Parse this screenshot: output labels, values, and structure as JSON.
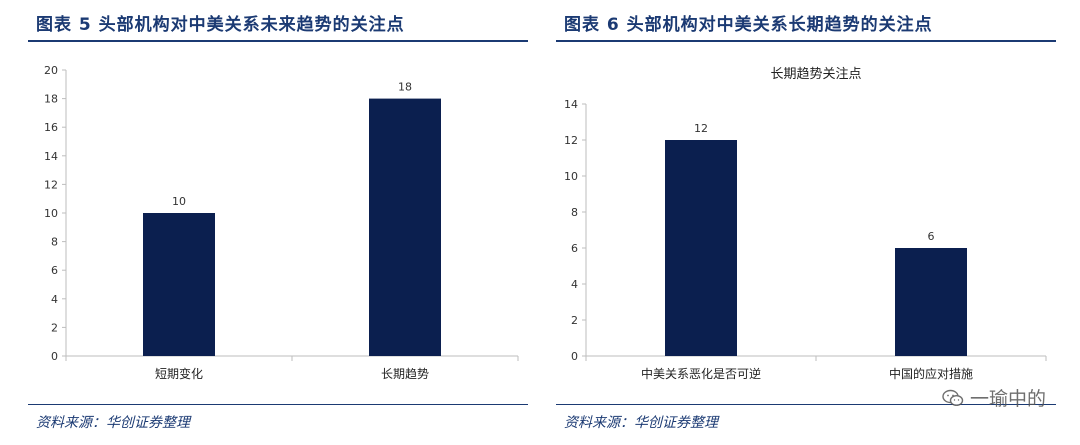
{
  "figures": [
    {
      "title": "图表 5   头部机构对中美关系未来趋势的关注点",
      "source": "资料来源：华创证券整理"
    },
    {
      "title": "图表 6   头部机构对中美关系长期趋势的关注点",
      "source": "资料来源：华创证券整理"
    }
  ],
  "watermark": {
    "text": "一瑜中的",
    "icon": "wechat-icon"
  },
  "colors": {
    "bar": "#0b1f4f",
    "title": "#1b3a73",
    "axis": "#bdbdbd"
  },
  "chart_data": [
    {
      "type": "bar",
      "title": "",
      "categories": [
        "短期变化",
        "长期趋势"
      ],
      "values": [
        10,
        18
      ],
      "ylim": [
        0,
        20
      ],
      "yticks": [
        0,
        2,
        4,
        6,
        8,
        10,
        12,
        14,
        16,
        18,
        20
      ],
      "data_labels": true,
      "grid": false,
      "legend": "none"
    },
    {
      "type": "bar",
      "title": "长期趋势关注点",
      "categories": [
        "中美关系恶化是否可逆",
        "中国的应对措施"
      ],
      "values": [
        12,
        6
      ],
      "ylim": [
        0,
        14
      ],
      "yticks": [
        0,
        2,
        4,
        6,
        8,
        10,
        12,
        14
      ],
      "data_labels": true,
      "grid": false,
      "legend": "none"
    }
  ]
}
